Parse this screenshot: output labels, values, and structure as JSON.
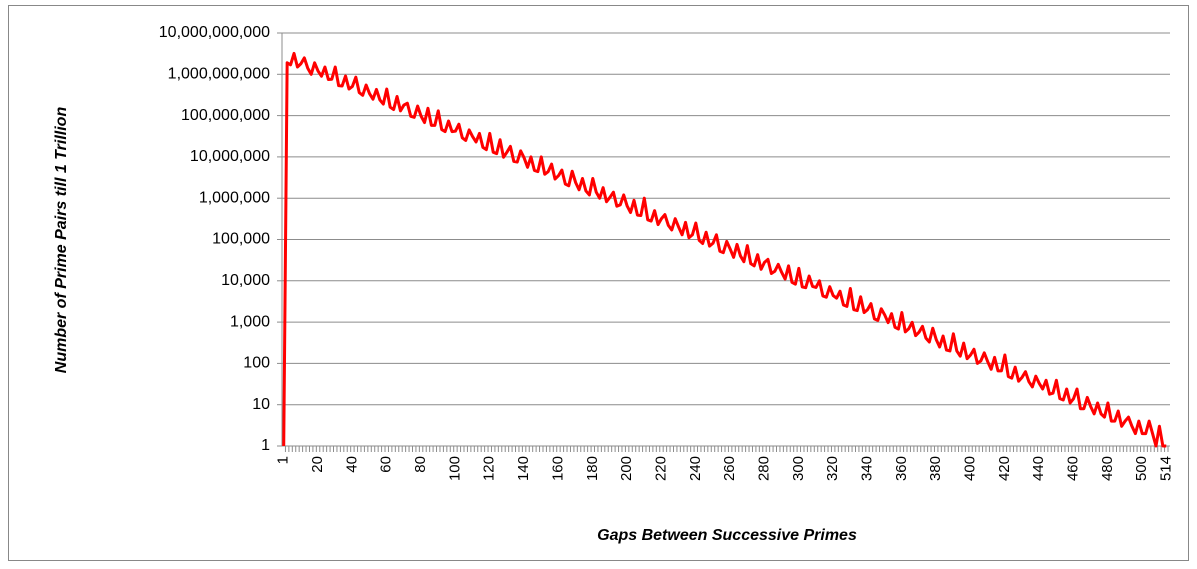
{
  "chart_data": {
    "type": "line",
    "x_label": "Gaps Between Successive Primes",
    "y_label": "Number of Prime Pairs till 1 Trillion",
    "categories": [
      1,
      null,
      null,
      null,
      null,
      null,
      null,
      null,
      null,
      null,
      20,
      null,
      null,
      null,
      null,
      null,
      null,
      null,
      null,
      null,
      40,
      null,
      null,
      null,
      null,
      null,
      null,
      null,
      null,
      null,
      60,
      null,
      null,
      null,
      null,
      null,
      null,
      null,
      null,
      null,
      80,
      null,
      null,
      null,
      null,
      null,
      null,
      null,
      null,
      null,
      100,
      null,
      null,
      null,
      null,
      null,
      null,
      null,
      null,
      null,
      120,
      null,
      null,
      null,
      null,
      null,
      null,
      null,
      null,
      null,
      140,
      null,
      null,
      null,
      null,
      null,
      null,
      null,
      null,
      null,
      160,
      null,
      null,
      null,
      null,
      null,
      null,
      null,
      null,
      null,
      180,
      null,
      null,
      null,
      null,
      null,
      null,
      null,
      null,
      null,
      200,
      null,
      null,
      null,
      null,
      null,
      null,
      null,
      null,
      null,
      220,
      null,
      null,
      null,
      null,
      null,
      null,
      null,
      null,
      null,
      240,
      null,
      null,
      null,
      null,
      null,
      null,
      null,
      null,
      null,
      260,
      null,
      null,
      null,
      null,
      null,
      null,
      null,
      null,
      null,
      280,
      null,
      null,
      null,
      null,
      null,
      null,
      null,
      null,
      null,
      300,
      null,
      null,
      null,
      null,
      null,
      null,
      null,
      null,
      null,
      320,
      null,
      null,
      null,
      null,
      null,
      null,
      null,
      null,
      null,
      340,
      null,
      null,
      null,
      null,
      null,
      null,
      null,
      null,
      null,
      360,
      null,
      null,
      null,
      null,
      null,
      null,
      null,
      null,
      null,
      380,
      null,
      null,
      null,
      null,
      null,
      null,
      null,
      null,
      null,
      400,
      null,
      null,
      null,
      null,
      null,
      null,
      null,
      null,
      null,
      420,
      null,
      null,
      null,
      null,
      null,
      null,
      null,
      null,
      null,
      440,
      null,
      null,
      null,
      null,
      null,
      null,
      null,
      null,
      null,
      460,
      null,
      null,
      null,
      null,
      null,
      null,
      null,
      null,
      null,
      480,
      null,
      null,
      null,
      null,
      null,
      null,
      null,
      null,
      null,
      500,
      null,
      null,
      null,
      null,
      null,
      null,
      514
    ],
    "series": [
      {
        "name": "Prime pairs",
        "color": "#ff0000",
        "values": [
          1,
          1900000000.0,
          1700000000.0,
          3200000000.0,
          1500000000.0,
          1800000000.0,
          2500000000.0,
          1400000000.0,
          1000000000.0,
          1900000000.0,
          1200000000.0,
          900000000.0,
          1500000000.0,
          750000000.0,
          760000000.0,
          1500000000.0,
          530000000.0,
          520000000.0,
          910000000.0,
          440000000.0,
          510000000.0,
          850000000.0,
          360000000.0,
          310000000.0,
          550000000.0,
          340000000.0,
          250000000.0,
          430000000.0,
          240000000.0,
          190000000.0,
          440000000.0,
          160000000.0,
          140000000.0,
          290000000.0,
          130000000.0,
          180000000.0,
          200000000.0,
          96000000.0,
          91000000.0,
          170000000.0,
          97000000.0,
          68000000.0,
          150000000.0,
          58000000.0,
          58000000.0,
          130000000.0,
          46000000.0,
          41000000.0,
          74000000.0,
          41000000.0,
          42000000.0,
          62000000.0,
          29000000.0,
          25000000.0,
          45000000.0,
          31000000.0,
          23000000.0,
          37000000.0,
          17000000.0,
          15000000.0,
          37000000.0,
          13000000.0,
          12000000.0,
          26000000.0,
          9800000.0,
          13000000.0,
          18000000.0,
          7800000.0,
          7500000.0,
          14000000.0,
          9500000.0,
          5600000.0,
          10000000.0,
          4700000.0,
          4400000.0,
          10000000.0,
          3800000.0,
          4400000.0,
          6700000.0,
          2900000.0,
          3500000.0,
          4800000.0,
          2200000.0,
          2000000.0,
          4500000.0,
          2400000.0,
          1600000.0,
          3000000.0,
          1500000.0,
          1200000.0,
          3000000.0,
          1400000.0,
          1000000.0,
          1800000.0,
          820000.0,
          1050000.0,
          1400000.0,
          640000.0,
          690000.0,
          1200000.0,
          650000.0,
          450000.0,
          890000.0,
          390000.0,
          380000.0,
          1000000.0,
          300000.0,
          280000.0,
          500000.0,
          230000.0,
          320000.0,
          400000.0,
          220000.0,
          170000.0,
          320000.0,
          200000.0,
          130000.0,
          260000.0,
          110000.0,
          130000.0,
          250000.0,
          95000.0,
          80000.0,
          150000.0,
          69000.0,
          81000.0,
          130000.0,
          52000.0,
          48000.0,
          90000.0,
          59000.0,
          37000.0,
          76000.0,
          40000.0,
          29000.0,
          71000.0,
          26000.0,
          23000.0,
          43000.0,
          19000.0,
          28000.0,
          33000.0,
          15000.0,
          17000.0,
          25000.0,
          16000.0,
          11000.0,
          23000.0,
          9200.0,
          8300.0,
          20000.0,
          7100.0,
          6800.0,
          13000.0,
          7300.0,
          6900.0,
          10000.0,
          4300.0,
          4000.0,
          7200.0,
          4400.0,
          3800.0,
          5600.0,
          2600.0,
          2400.0,
          6500.0,
          2000.0,
          1900.0,
          4100.0,
          1700.0,
          2000.0,
          2800.0,
          1200.0,
          1100.0,
          2100.0,
          1500.0,
          970,
          1600.0,
          750,
          680,
          1700.0,
          580,
          690,
          990,
          470,
          570,
          790,
          410,
          330,
          710,
          380,
          250,
          460,
          210,
          200,
          520,
          200,
          150,
          310,
          130,
          160,
          220,
          100,
          115,
          180,
          110,
          72,
          140,
          66,
          66,
          160,
          48,
          44,
          81,
          37,
          46,
          63,
          36,
          27,
          49,
          33,
          24,
          39,
          18,
          19,
          39,
          14,
          13,
          24,
          11,
          14,
          24,
          8,
          8,
          15,
          9,
          6,
          11,
          6,
          5,
          11,
          4,
          4,
          7,
          3,
          4,
          5,
          3,
          2,
          4,
          2,
          2,
          4,
          2,
          1,
          3,
          1,
          1
        ]
      }
    ],
    "ylim": [
      1,
      10000000000
    ],
    "log_y": true,
    "grid": true,
    "yticks": [
      1,
      10,
      100,
      {
        "value": 1000,
        "label": "1,000"
      },
      {
        "value": 10000,
        "label": "10,000"
      },
      {
        "value": 100000,
        "label": "100,000"
      },
      {
        "value": 1000000,
        "label": "1,000,000"
      },
      {
        "value": 10000000,
        "label": "10,000,000"
      },
      {
        "value": 100000000,
        "label": "100,000,000"
      },
      {
        "value": 1000000000,
        "label": "1,000,000,000"
      },
      {
        "value": 10000000000,
        "label": "10,000,000,000"
      }
    ]
  }
}
